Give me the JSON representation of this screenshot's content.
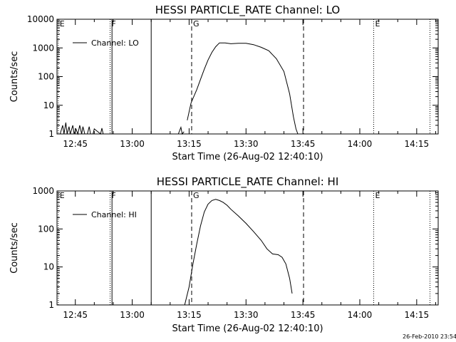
{
  "chart_data": [
    {
      "type": "line",
      "title": "HESSI PARTICLE_RATE Channel: LO",
      "xlabel": "Start Time (26-Aug-02 12:40:10)",
      "ylabel": "Counts/sec",
      "y_scale": "log",
      "xlim": [
        "12:40:10",
        "14:20:40"
      ],
      "ylim": [
        1,
        10000
      ],
      "x_ticks": [
        "12:45",
        "13:00",
        "13:15",
        "13:30",
        "13:45",
        "14:00",
        "14:15"
      ],
      "y_ticks": [
        "1",
        "10",
        "100",
        "1000",
        "10000"
      ],
      "legend": {
        "position": "top-left",
        "label": "Channel: LO"
      },
      "vertical_markers": [
        {
          "label": "E",
          "time": "12:40:30",
          "style": "dotted"
        },
        {
          "label": "F",
          "time": "12:54:10",
          "style": "dotted"
        },
        {
          "label": "",
          "time": "12:54:40",
          "style": "solid"
        },
        {
          "label": "",
          "time": "13:05:00",
          "style": "solid"
        },
        {
          "label": "G",
          "time": "13:15:40",
          "style": "dashed"
        },
        {
          "label": "",
          "time": "13:45:10",
          "style": "dashed"
        },
        {
          "label": "E",
          "time": "14:03:40",
          "style": "dotted"
        },
        {
          "label": "",
          "time": "14:18:30",
          "style": "dotted"
        }
      ],
      "series": [
        {
          "x": [
            "12:41:00",
            "12:41:40",
            "12:42:00",
            "12:42:30",
            "12:42:50",
            "12:43:20",
            "12:43:40",
            "12:44:20",
            "12:44:40",
            "12:45:10",
            "12:45:40",
            "12:46:10",
            "12:46:40",
            "12:47:00",
            "12:47:30",
            "12:48:10",
            "12:48:40",
            "12:49:00",
            "12:49:40",
            "12:50:00",
            "12:51:40",
            "12:52:00",
            "12:52:20"
          ],
          "values": [
            1,
            2,
            1,
            2.5,
            1,
            1.8,
            1,
            2,
            1,
            1.5,
            1,
            2,
            1,
            1.8,
            1,
            1,
            1.8,
            1,
            1,
            1.5,
            1,
            1.6,
            1
          ]
        },
        {
          "x": [
            "13:12:10",
            "13:12:50",
            "13:13:10",
            "13:13:40"
          ],
          "values": [
            1,
            1.7,
            1,
            1.2
          ]
        },
        {
          "x": [
            "13:14:30",
            "13:15:30",
            "13:17:00",
            "13:18:00",
            "13:19:00",
            "13:20:00",
            "13:21:00",
            "13:22:00",
            "13:23:00",
            "13:24:30",
            "13:26:00",
            "13:28:00",
            "13:30:00",
            "13:32:00",
            "13:34:00",
            "13:36:00",
            "13:38:00",
            "13:40:00",
            "13:41:30",
            "13:42:30",
            "13:43:10",
            "13:43:40"
          ],
          "values": [
            3,
            12,
            35,
            80,
            180,
            380,
            700,
            1100,
            1500,
            1500,
            1400,
            1450,
            1450,
            1300,
            1050,
            800,
            420,
            150,
            25,
            4,
            1.5,
            1
          ]
        }
      ]
    },
    {
      "type": "line",
      "title": "HESSI PARTICLE_RATE Channel: HI",
      "xlabel": "Start Time (26-Aug-02 12:40:10)",
      "ylabel": "Counts/sec",
      "y_scale": "log",
      "xlim": [
        "12:40:10",
        "14:20:40"
      ],
      "ylim": [
        1,
        1000
      ],
      "x_ticks": [
        "12:45",
        "13:00",
        "13:15",
        "13:30",
        "13:45",
        "14:00",
        "14:15"
      ],
      "y_ticks": [
        "1",
        "10",
        "100",
        "1000"
      ],
      "legend": {
        "position": "top-left",
        "label": "Channel: HI"
      },
      "vertical_markers": [
        {
          "label": "E",
          "time": "12:40:30",
          "style": "dotted"
        },
        {
          "label": "F",
          "time": "12:54:10",
          "style": "dotted"
        },
        {
          "label": "",
          "time": "12:54:40",
          "style": "solid"
        },
        {
          "label": "",
          "time": "13:05:00",
          "style": "solid"
        },
        {
          "label": "G",
          "time": "13:15:40",
          "style": "dashed"
        },
        {
          "label": "",
          "time": "13:45:10",
          "style": "dashed"
        },
        {
          "label": "E",
          "time": "14:03:40",
          "style": "dotted"
        },
        {
          "label": "",
          "time": "14:18:30",
          "style": "dotted"
        }
      ],
      "series": [
        {
          "x": [
            "13:13:50",
            "13:15:00",
            "13:16:00",
            "13:17:00",
            "13:18:00",
            "13:19:00",
            "13:20:00",
            "13:21:00",
            "13:22:00",
            "13:23:00",
            "13:24:00",
            "13:25:00",
            "13:26:00",
            "13:28:00",
            "13:30:00",
            "13:32:00",
            "13:34:00",
            "13:35:30",
            "13:37:00",
            "13:38:30",
            "13:39:30",
            "13:40:30",
            "13:41:30",
            "13:42:10"
          ],
          "values": [
            1,
            3,
            12,
            40,
            120,
            280,
            450,
            560,
            600,
            560,
            500,
            420,
            330,
            220,
            140,
            85,
            50,
            30,
            22,
            21,
            18,
            12,
            5,
            2
          ]
        }
      ]
    }
  ],
  "timestamp": "26-Feb-2010 23:54"
}
